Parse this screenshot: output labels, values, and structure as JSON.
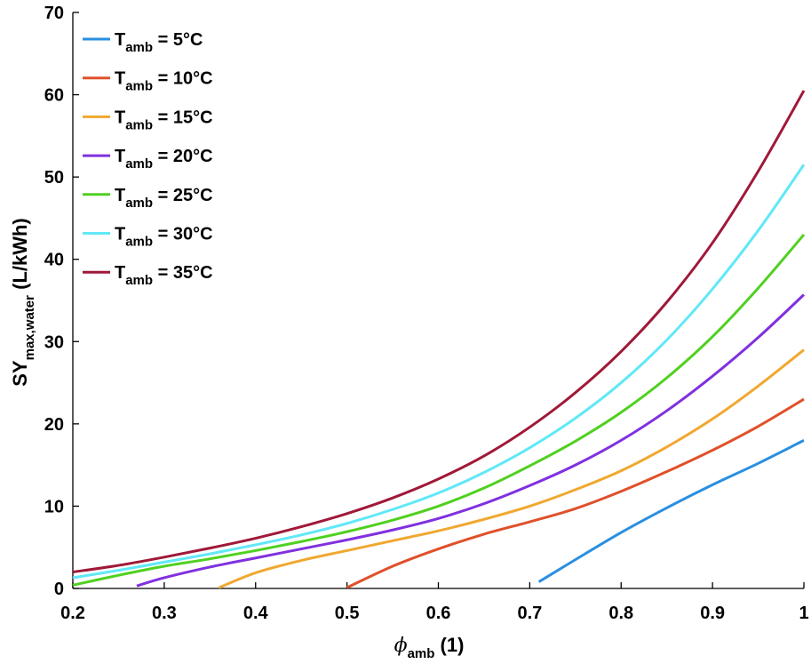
{
  "chart_data": {
    "type": "line",
    "xlabel": {
      "symbol": "ϕ",
      "subscript": "amb",
      "suffix": " (1)"
    },
    "ylabel": {
      "main": "SY",
      "subscript": "max,water",
      "suffix": " (L/kWh)"
    },
    "xlim": [
      0.2,
      1
    ],
    "ylim": [
      0,
      70
    ],
    "xticks": [
      0.2,
      0.3,
      0.4,
      0.5,
      0.6,
      0.7,
      0.8,
      0.9,
      1
    ],
    "xtick_labels": [
      "0.2",
      "0.3",
      "0.4",
      "0.5",
      "0.6",
      "0.7",
      "0.8",
      "0.9",
      "1"
    ],
    "yticks": [
      0,
      10,
      20,
      30,
      40,
      50,
      60,
      70
    ],
    "ytick_labels": [
      "0",
      "10",
      "20",
      "30",
      "40",
      "50",
      "60",
      "70"
    ],
    "grid": false,
    "legend_position": "top-left",
    "series": [
      {
        "name": "T",
        "name_sub": "amb",
        "name_suffix": " = 5°C",
        "color": "#2a8fe0",
        "x": [
          0.71,
          0.75,
          0.8,
          0.85,
          0.9,
          0.95,
          1.0
        ],
        "y": [
          0.8,
          3.5,
          6.8,
          9.8,
          12.6,
          15.2,
          18.0
        ]
      },
      {
        "name": "T",
        "name_sub": "amb",
        "name_suffix": " = 10°C",
        "color": "#e0502a",
        "x": [
          0.5,
          0.55,
          0.6,
          0.65,
          0.7,
          0.75,
          0.8,
          0.85,
          0.9,
          0.95,
          1.0
        ],
        "y": [
          0.1,
          2.7,
          4.8,
          6.6,
          8.1,
          9.7,
          11.8,
          14.2,
          16.8,
          19.7,
          23.0
        ]
      },
      {
        "name": "T",
        "name_sub": "amb",
        "name_suffix": " = 15°C",
        "color": "#f0a830",
        "x": [
          0.36,
          0.4,
          0.45,
          0.5,
          0.55,
          0.6,
          0.65,
          0.7,
          0.75,
          0.8,
          0.85,
          0.9,
          0.95,
          1.0
        ],
        "y": [
          0.1,
          1.9,
          3.4,
          4.6,
          5.8,
          7.0,
          8.4,
          10.0,
          12.0,
          14.3,
          17.2,
          20.6,
          24.6,
          29.0
        ]
      },
      {
        "name": "T",
        "name_sub": "amb",
        "name_suffix": " = 20°C",
        "color": "#8030e0",
        "x": [
          0.27,
          0.3,
          0.35,
          0.4,
          0.45,
          0.5,
          0.55,
          0.6,
          0.65,
          0.7,
          0.75,
          0.8,
          0.85,
          0.9,
          0.95,
          1.0
        ],
        "y": [
          0.3,
          1.3,
          2.6,
          3.7,
          4.8,
          5.9,
          7.1,
          8.5,
          10.3,
          12.5,
          15.0,
          18.0,
          21.6,
          25.8,
          30.5,
          35.7
        ]
      },
      {
        "name": "T",
        "name_sub": "amb",
        "name_suffix": " = 25°C",
        "color": "#50d020",
        "x": [
          0.2,
          0.25,
          0.3,
          0.35,
          0.4,
          0.45,
          0.5,
          0.55,
          0.6,
          0.65,
          0.7,
          0.75,
          0.8,
          0.85,
          0.9,
          0.95,
          1.0
        ],
        "y": [
          0.4,
          1.6,
          2.7,
          3.6,
          4.6,
          5.7,
          6.9,
          8.3,
          10.0,
          12.2,
          14.9,
          17.9,
          21.4,
          25.6,
          30.6,
          36.5,
          43.0
        ]
      },
      {
        "name": "T",
        "name_sub": "amb",
        "name_suffix": " = 30°C",
        "color": "#60e8f8",
        "x": [
          0.2,
          0.25,
          0.3,
          0.35,
          0.4,
          0.45,
          0.5,
          0.55,
          0.6,
          0.65,
          0.7,
          0.75,
          0.8,
          0.85,
          0.9,
          0.95,
          1.0
        ],
        "y": [
          1.3,
          2.2,
          3.2,
          4.2,
          5.3,
          6.5,
          7.9,
          9.6,
          11.6,
          14.1,
          17.1,
          20.7,
          25.0,
          30.2,
          36.4,
          43.5,
          51.5
        ]
      },
      {
        "name": "T",
        "name_sub": "amb",
        "name_suffix": " = 35°C",
        "color": "#a01838",
        "x": [
          0.2,
          0.25,
          0.3,
          0.35,
          0.4,
          0.45,
          0.5,
          0.55,
          0.6,
          0.65,
          0.7,
          0.75,
          0.8,
          0.85,
          0.9,
          0.95,
          1.0
        ],
        "y": [
          2.0,
          2.8,
          3.8,
          4.9,
          6.1,
          7.5,
          9.1,
          11.0,
          13.3,
          16.1,
          19.6,
          23.8,
          28.8,
          34.8,
          42.0,
          50.7,
          60.5
        ]
      }
    ]
  }
}
